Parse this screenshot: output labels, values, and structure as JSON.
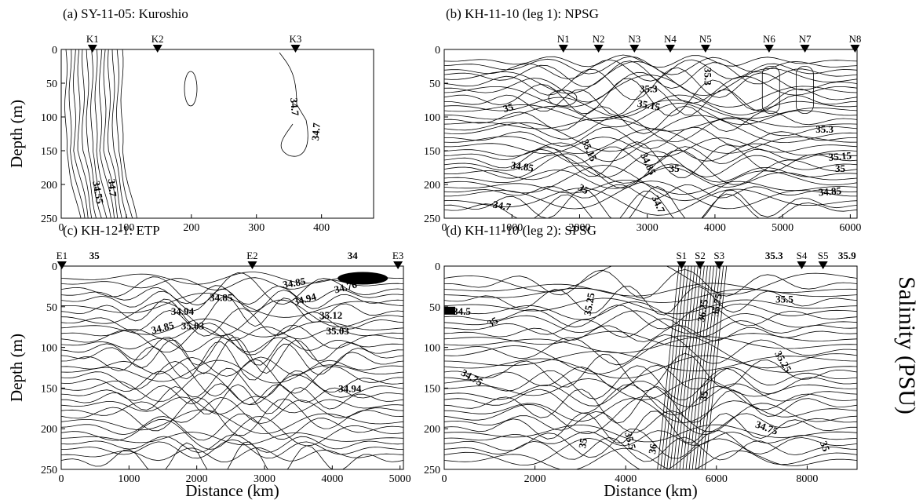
{
  "figure": {
    "colorbar_label": "Salinity (PSU)"
  },
  "chart_data": [
    {
      "type": "heatmap",
      "title": "(a) SY-11-05: Kuroshio",
      "xlabel": "",
      "ylabel": "Depth (m)",
      "xlim": [
        0,
        480
      ],
      "ylim": [
        0,
        250
      ],
      "y_reversed": true,
      "xticks": [
        0,
        100,
        200,
        300,
        400
      ],
      "yticks": [
        0,
        50,
        100,
        150,
        200,
        250
      ],
      "stations": [
        {
          "name": "K1",
          "x": 48
        },
        {
          "name": "K2",
          "x": 148
        },
        {
          "name": "K3",
          "x": 360
        }
      ],
      "contour_labels": [
        {
          "text": "34.55",
          "x": 55,
          "y": 212,
          "rot": 80
        },
        {
          "text": "34.7",
          "x": 77,
          "y": 205,
          "rot": 85
        },
        {
          "text": "34.7",
          "x": 357,
          "y": 85,
          "rot": 85
        },
        {
          "text": "34.7",
          "x": 393,
          "y": 122,
          "rot": -85
        }
      ]
    },
    {
      "type": "heatmap",
      "title": "(b) KH-11-10 (leg 1): NPSG",
      "xlabel": "",
      "ylabel": "",
      "xlim": [
        0,
        6100
      ],
      "ylim": [
        0,
        250
      ],
      "y_reversed": true,
      "xticks": [
        0,
        1000,
        2000,
        3000,
        4000,
        5000,
        6000
      ],
      "yticks": [
        0,
        50,
        100,
        150,
        200,
        250
      ],
      "stations": [
        {
          "name": "N1",
          "x": 1760
        },
        {
          "name": "N2",
          "x": 2280
        },
        {
          "name": "N3",
          "x": 2810
        },
        {
          "name": "N4",
          "x": 3340
        },
        {
          "name": "N5",
          "x": 3860
        },
        {
          "name": "N6",
          "x": 4800
        },
        {
          "name": "N7",
          "x": 5330
        },
        {
          "name": "N8",
          "x": 6070
        }
      ],
      "contour_labels": [
        {
          "text": "35",
          "x": 950,
          "y": 88,
          "rot": -15
        },
        {
          "text": "35.3",
          "x": 3020,
          "y": 60,
          "rot": 0
        },
        {
          "text": "35.15",
          "x": 3020,
          "y": 84,
          "rot": 10
        },
        {
          "text": "35.3",
          "x": 3880,
          "y": 40,
          "rot": 90
        },
        {
          "text": "35.3",
          "x": 5620,
          "y": 120,
          "rot": 0
        },
        {
          "text": "35.15",
          "x": 2130,
          "y": 150,
          "rot": 65
        },
        {
          "text": "35",
          "x": 2050,
          "y": 208,
          "rot": 30
        },
        {
          "text": "34.85",
          "x": 1150,
          "y": 175,
          "rot": 8
        },
        {
          "text": "34.85",
          "x": 3000,
          "y": 170,
          "rot": 65
        },
        {
          "text": "35",
          "x": 3400,
          "y": 178,
          "rot": 0
        },
        {
          "text": "34.7",
          "x": 3150,
          "y": 230,
          "rot": 65
        },
        {
          "text": "34.7",
          "x": 850,
          "y": 233,
          "rot": 10
        },
        {
          "text": "35.15",
          "x": 5850,
          "y": 160,
          "rot": -5
        },
        {
          "text": "35",
          "x": 5850,
          "y": 178,
          "rot": 0
        },
        {
          "text": "34.85",
          "x": 5700,
          "y": 212,
          "rot": -5
        }
      ]
    },
    {
      "type": "heatmap",
      "title": "(c) KH-12-1: ETP",
      "xlabel": "Distance (km)",
      "ylabel": "Depth (m)",
      "xlim": [
        0,
        5050
      ],
      "ylim": [
        0,
        250
      ],
      "y_reversed": true,
      "xticks": [
        0,
        1000,
        2000,
        3000,
        4000,
        5000
      ],
      "yticks": [
        0,
        50,
        100,
        150,
        200,
        250
      ],
      "stations": [
        {
          "name": "E1",
          "x": 10
        },
        {
          "name": "E2",
          "x": 2820
        },
        {
          "name": "E3",
          "x": 4970
        }
      ],
      "top_labels": [
        {
          "text": "35",
          "x": 490
        },
        {
          "text": "34",
          "x": 4300
        }
      ],
      "contour_labels": [
        {
          "text": "34.85",
          "x": 3440,
          "y": 22,
          "rot": -10
        },
        {
          "text": "34.76",
          "x": 4200,
          "y": 27,
          "rot": -15
        },
        {
          "text": "34.85",
          "x": 2360,
          "y": 40,
          "rot": 0
        },
        {
          "text": "34.94",
          "x": 3600,
          "y": 42,
          "rot": -15
        },
        {
          "text": "34.94",
          "x": 1790,
          "y": 57,
          "rot": 0
        },
        {
          "text": "34.85",
          "x": 1500,
          "y": 77,
          "rot": -15
        },
        {
          "text": "35.03",
          "x": 1940,
          "y": 75,
          "rot": 0
        },
        {
          "text": "35.12",
          "x": 3980,
          "y": 62,
          "rot": 0
        },
        {
          "text": "35.03",
          "x": 4080,
          "y": 81,
          "rot": 0
        },
        {
          "text": "34.94",
          "x": 4260,
          "y": 152,
          "rot": 0
        }
      ]
    },
    {
      "type": "heatmap",
      "title": "(d) KH-11-10 (leg 2): SPSG",
      "xlabel": "Distance (km)",
      "ylabel": "",
      "xlim": [
        0,
        9100
      ],
      "ylim": [
        0,
        250
      ],
      "y_reversed": true,
      "xticks": [
        0,
        2000,
        4000,
        6000,
        8000
      ],
      "yticks": [
        0,
        50,
        100,
        150,
        200,
        250
      ],
      "stations": [
        {
          "name": "S1",
          "x": 5230
        },
        {
          "name": "S2",
          "x": 5640
        },
        {
          "name": "S3",
          "x": 6060
        },
        {
          "name": "S4",
          "x": 7880
        },
        {
          "name": "S5",
          "x": 8350
        }
      ],
      "top_labels": [
        {
          "text": "35.3",
          "x": 7270
        },
        {
          "text": "35.9",
          "x": 8880
        }
      ],
      "contour_labels": [
        {
          "text": "34.5",
          "x": 390,
          "y": 57,
          "rot": 0
        },
        {
          "text": "35",
          "x": 1080,
          "y": 70,
          "rot": -30
        },
        {
          "text": "35.25",
          "x": 3220,
          "y": 47,
          "rot": -80
        },
        {
          "text": "36.25",
          "x": 5720,
          "y": 55,
          "rot": -80
        },
        {
          "text": "35.75",
          "x": 6030,
          "y": 48,
          "rot": -80
        },
        {
          "text": "35.5",
          "x": 7500,
          "y": 42,
          "rot": 0
        },
        {
          "text": "34.75",
          "x": 600,
          "y": 138,
          "rot": 30
        },
        {
          "text": "35.25",
          "x": 7450,
          "y": 118,
          "rot": 60
        },
        {
          "text": "35",
          "x": 5750,
          "y": 160,
          "rot": -80
        },
        {
          "text": "35",
          "x": 3080,
          "y": 218,
          "rot": -80
        },
        {
          "text": "35.5",
          "x": 4080,
          "y": 215,
          "rot": 75
        },
        {
          "text": "36",
          "x": 4620,
          "y": 225,
          "rot": -80
        },
        {
          "text": "34.75",
          "x": 7100,
          "y": 200,
          "rot": 20
        },
        {
          "text": "35",
          "x": 8370,
          "y": 222,
          "rot": 70
        }
      ]
    }
  ]
}
